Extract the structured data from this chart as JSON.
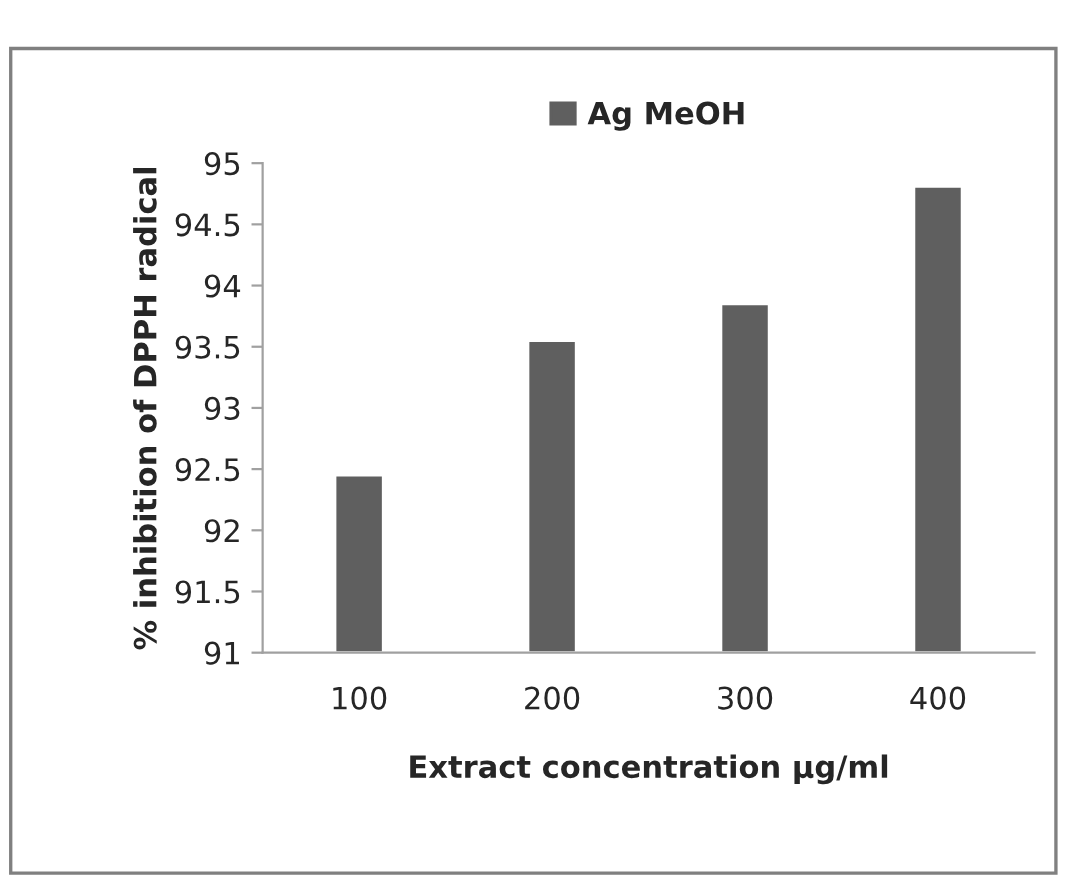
{
  "chart_data": {
    "type": "bar",
    "xlabel": "Extract concentration µg/ml",
    "ylabel": "% inhibition of DPPH radical",
    "categories": [
      "100",
      "200",
      "300",
      "400"
    ],
    "series": [
      {
        "name": "Ag MeOH",
        "color": "#5f5f5f",
        "values": [
          92.45,
          93.55,
          93.85,
          94.81
        ]
      }
    ],
    "ylim": [
      91,
      95
    ],
    "yticks": [
      91,
      91.5,
      92,
      92.5,
      93,
      93.5,
      94,
      94.5,
      95
    ],
    "grid": false,
    "legend": "top"
  }
}
